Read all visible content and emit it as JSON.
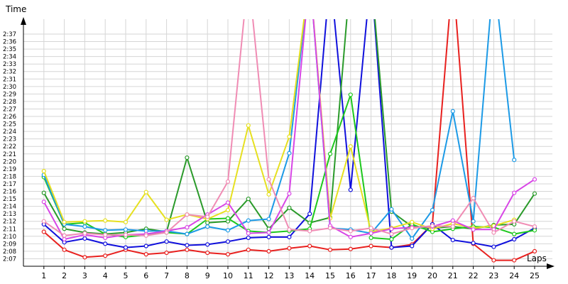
{
  "chart_data": {
    "type": "line",
    "xlabel": "Laps",
    "ylabel": "Time",
    "xlim": [
      0,
      25
    ],
    "ylim": [
      "2:06",
      "2:37"
    ],
    "grid": true,
    "x": [
      1,
      2,
      3,
      4,
      5,
      6,
      7,
      8,
      9,
      10,
      11,
      12,
      13,
      14,
      15,
      16,
      17,
      18,
      19,
      20,
      21,
      22,
      23,
      24,
      25
    ],
    "xticks": [
      "1",
      "2",
      "3",
      "4",
      "5",
      "6",
      "7",
      "8",
      "9",
      "10",
      "11",
      "12",
      "13",
      "14",
      "15",
      "16",
      "17",
      "18",
      "19",
      "20",
      "21",
      "22",
      "23",
      "24",
      "25"
    ],
    "yticks": [
      "2:07",
      "2:08",
      "2:09",
      "2:10",
      "2:11",
      "2:12",
      "2:13",
      "2:14",
      "2:15",
      "2:16",
      "2:17",
      "2:18",
      "2:19",
      "2:20",
      "2:21",
      "2:22",
      "2:23",
      "2:24",
      "2:25",
      "2:26",
      "2:27",
      "2:28",
      "2:29",
      "2:30",
      "2:31",
      "2:32",
      "2:33",
      "2:34",
      "2:35",
      "2:36",
      "2:37"
    ],
    "series": [
      {
        "color": "#e8201e",
        "values": [
          "2:10.6",
          "2:08.2",
          "2:07.2",
          "2:07.4",
          "2:08.2",
          "2:07.6",
          "2:07.8",
          "2:08.2",
          "2:07.8",
          "2:07.6",
          "2:08.2",
          "2:08.0",
          "2:08.4",
          "2:08.7",
          "2:08.2",
          "2:08.3",
          "2:08.7",
          "2:08.5",
          "2:08.9",
          "2:11.6",
          "2:45",
          "2:09.0",
          "2:06.8",
          "2:06.8",
          "2:08.0"
        ]
      },
      {
        "color": "#1010dc",
        "values": [
          "2:11.6",
          "2:09.2",
          "2:09.7",
          "2:09.0",
          "2:08.5",
          "2:08.7",
          "2:09.3",
          "2:08.8",
          "2:08.9",
          "2:09.3",
          "2:09.8",
          "2:09.9",
          "2:09.9",
          "2:13.0",
          "2:45",
          "2:16.2",
          "2:45",
          "2:08.5",
          "2:08.7",
          "2:11.6",
          "2:09.5",
          "2:09.1",
          "2:08.6",
          "2:09.6",
          "2:11.1"
        ]
      },
      {
        "color": "#2a9a2a",
        "values": [
          "2:15.8",
          "2:11.0",
          "2:10.5",
          "2:10.3",
          "2:10.5",
          "2:11.0",
          "2:10.6",
          "2:20.5",
          "2:11.8",
          "2:12.0",
          "2:15.0",
          "2:11.0",
          "2:13.8",
          "2:11.8",
          "2:12.5",
          "2:45",
          "2:45",
          "2:13.3",
          "2:11.3",
          "2:11.1",
          "2:11.3",
          "2:11.0",
          "2:11.5",
          "2:11.6",
          "2:15.7"
        ]
      },
      {
        "color": "#1ec81e",
        "values": [
          "2:17.9",
          "2:11.6",
          "2:11.8",
          "2:10.3",
          "2:09.9",
          "2:10.2",
          "2:10.5",
          "2:10.3",
          "2:12.3",
          "2:12.4",
          "2:10.7",
          "2:10.5",
          "2:10.7",
          "2:11.0",
          "2:21.0",
          "2:28.9",
          "2:09.8",
          "2:09.6",
          "2:11.6",
          "2:10.6",
          "2:11.0",
          "2:11.3",
          "2:11.2",
          "2:10.3",
          "2:10.8"
        ]
      },
      {
        "color": "#1c9ae6",
        "values": [
          "2:18.2",
          "2:11.6",
          "2:11.3",
          "2:10.8",
          "2:10.9",
          "2:10.7",
          "2:10.7",
          "2:10.3",
          "2:11.3",
          "2:10.8",
          "2:12.1",
          "2:12.3",
          "2:21.1",
          "2:45",
          "2:11.1",
          "2:10.9",
          "2:10.4",
          "2:13.6",
          "2:09.7",
          "2:13.5",
          "2:26.7",
          "2:12.0",
          "2:45",
          "2:20.2",
          null
        ]
      },
      {
        "color": "#e6e020",
        "values": [
          "2:18.7",
          "2:11.9",
          "2:12.0",
          "2:12.1",
          "2:11.9",
          "2:15.9",
          "2:12.2",
          "2:12.9",
          "2:12.3",
          "2:13.5",
          "2:24.8",
          "2:15.6",
          "2:23.3",
          "2:45",
          "2:12.4",
          "2:22.0",
          "2:10.6",
          "2:11.1",
          "2:11.9",
          "2:11.0",
          "2:11.7",
          "2:11.1",
          "2:11.4",
          "2:12.2",
          null
        ]
      },
      {
        "color": "#d846e6",
        "values": [
          "2:14.6",
          "2:09.6",
          "2:10.2",
          "2:09.8",
          "2:10.2",
          "2:10.3",
          "2:10.7",
          "2:11.2",
          "2:12.9",
          "2:14.5",
          "2:10.4",
          "2:10.5",
          "2:15.7",
          "2:45",
          "2:11.4",
          "2:09.9",
          "2:10.4",
          "2:11.0",
          "2:11.2",
          "2:11.3",
          "2:12.1",
          "2:10.9",
          "2:10.9",
          "2:15.8",
          "2:17.6"
        ]
      },
      {
        "color": "#f08cb4",
        "values": [
          "2:12.0",
          "2:10.1",
          "2:10.4",
          "2:10.2",
          "2:10.2",
          "2:10.1",
          "2:10.5",
          "2:12.9",
          "2:12.6",
          "2:17.3",
          "2:45",
          "2:17.6",
          "2:10.9",
          "2:10.7",
          "2:11.1",
          "2:10.7",
          "2:11.1",
          "2:10.3",
          "2:11.1",
          "2:11.4",
          "2:11.3",
          "2:15.1",
          "2:10.5",
          "2:12.0",
          "2:11.3"
        ]
      }
    ]
  }
}
